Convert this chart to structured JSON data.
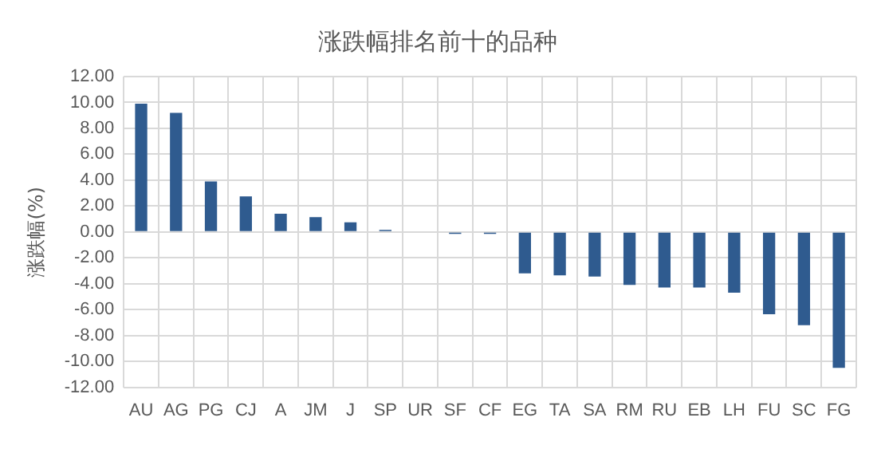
{
  "chart_data": {
    "type": "bar",
    "title": "涨跌幅排名前十的品种",
    "ylabel": "涨跌幅(%)",
    "categories": [
      "AU",
      "AG",
      "PG",
      "CJ",
      "A",
      "JM",
      "J",
      "SP",
      "UR",
      "SF",
      "CF",
      "EG",
      "TA",
      "SA",
      "RM",
      "RU",
      "EB",
      "LH",
      "FU",
      "SC",
      "FG"
    ],
    "values": [
      9.9,
      9.2,
      3.9,
      2.75,
      1.4,
      1.15,
      0.75,
      0.15,
      0,
      -0.15,
      -0.15,
      -3.2,
      -3.35,
      -3.45,
      -4.1,
      -4.3,
      -4.3,
      -4.7,
      -6.35,
      -7.2,
      -10.5
    ],
    "color": "#2f5b8f",
    "ylim": [
      -12,
      12
    ],
    "yticks": [
      {
        "value": -12,
        "label": "-12.00"
      },
      {
        "value": -10,
        "label": "-10.00"
      },
      {
        "value": -8,
        "label": "-8.00"
      },
      {
        "value": -6,
        "label": "-6.00"
      },
      {
        "value": -4,
        "label": "-4.00"
      },
      {
        "value": -2,
        "label": "-2.00"
      },
      {
        "value": 0,
        "label": "0.00"
      },
      {
        "value": 2,
        "label": "2.00"
      },
      {
        "value": 4,
        "label": "4.00"
      },
      {
        "value": 6,
        "label": "6.00"
      },
      {
        "value": 8,
        "label": "8.00"
      },
      {
        "value": 10,
        "label": "10.00"
      },
      {
        "value": 12,
        "label": "12.00"
      }
    ],
    "grid": true
  }
}
